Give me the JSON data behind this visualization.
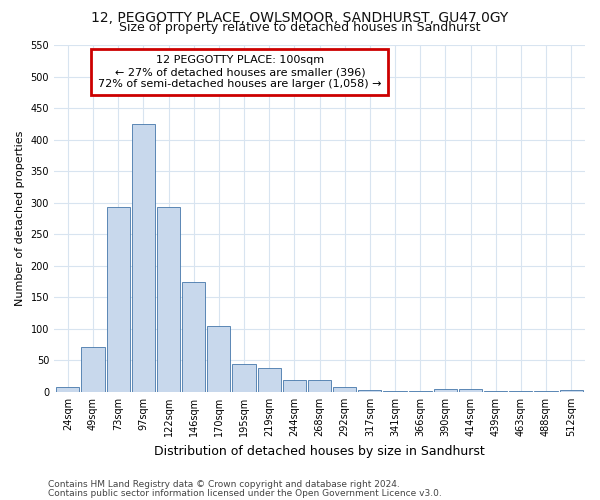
{
  "title_line1": "12, PEGGOTTY PLACE, OWLSMOOR, SANDHURST, GU47 0GY",
  "title_line2": "Size of property relative to detached houses in Sandhurst",
  "xlabel": "Distribution of detached houses by size in Sandhurst",
  "ylabel": "Number of detached properties",
  "footnote1": "Contains HM Land Registry data © Crown copyright and database right 2024.",
  "footnote2": "Contains public sector information licensed under the Open Government Licence v3.0.",
  "annotation_line1": "12 PEGGOTTY PLACE: 100sqm",
  "annotation_line2": "← 27% of detached houses are smaller (396)",
  "annotation_line3": "72% of semi-detached houses are larger (1,058) →",
  "bar_color": "#c8d8ec",
  "bar_edge_color": "#4477aa",
  "annotation_box_edge_color": "#cc0000",
  "grid_color": "#d8e4f0",
  "categories": [
    "24sqm",
    "49sqm",
    "73sqm",
    "97sqm",
    "122sqm",
    "146sqm",
    "170sqm",
    "195sqm",
    "219sqm",
    "244sqm",
    "268sqm",
    "292sqm",
    "317sqm",
    "341sqm",
    "366sqm",
    "390sqm",
    "414sqm",
    "439sqm",
    "463sqm",
    "488sqm",
    "512sqm"
  ],
  "values": [
    8,
    72,
    293,
    424,
    293,
    175,
    104,
    44,
    38,
    19,
    19,
    8,
    3,
    2,
    1,
    5,
    5,
    1,
    1,
    1,
    3
  ],
  "ylim": [
    0,
    550
  ],
  "yticks": [
    0,
    50,
    100,
    150,
    200,
    250,
    300,
    350,
    400,
    450,
    500,
    550
  ],
  "background_color": "#ffffff",
  "title1_fontsize": 10,
  "title2_fontsize": 9,
  "ylabel_fontsize": 8,
  "xlabel_fontsize": 9,
  "tick_fontsize": 7,
  "footnote_fontsize": 6.5,
  "annotation_fontsize": 8
}
